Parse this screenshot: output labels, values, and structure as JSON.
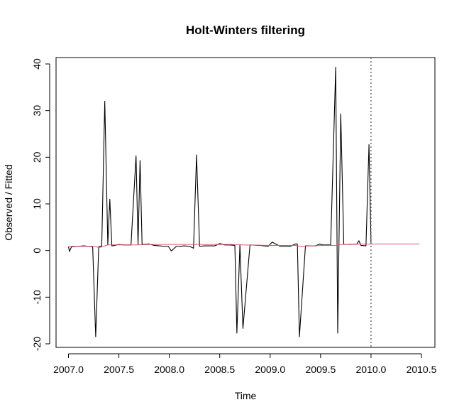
{
  "chart_data": {
    "type": "line",
    "title": "Holt-Winters filtering",
    "xlabel": "Time",
    "ylabel": "Observed / Fitted",
    "xlim": [
      2007.0,
      2010.5
    ],
    "ylim": [
      -20,
      40
    ],
    "xticks": [
      "2007.0",
      "2007.5",
      "2008.0",
      "2008.5",
      "2009.0",
      "2009.5",
      "2010.0",
      "2010.5"
    ],
    "yticks": [
      "-20",
      "-10",
      "0",
      "10",
      "20",
      "30",
      "40"
    ],
    "grid": false,
    "legend": "none",
    "reference_lines": [
      {
        "x": 2010.0,
        "style": "dotted",
        "color": "#555555"
      }
    ],
    "series": [
      {
        "color": "#000000",
        "x": [
          2007.0,
          2007.01,
          2007.03,
          2007.1,
          2007.15,
          2007.2,
          2007.24,
          2007.27,
          2007.3,
          2007.33,
          2007.36,
          2007.39,
          2007.41,
          2007.43,
          2007.46,
          2007.5,
          2007.55,
          2007.62,
          2007.67,
          2007.69,
          2007.71,
          2007.73,
          2007.8,
          2007.85,
          2007.9,
          2007.95,
          2007.99,
          2008.02,
          2008.07,
          2008.1,
          2008.15,
          2008.2,
          2008.24,
          2008.27,
          2008.3,
          2008.35,
          2008.4,
          2008.45,
          2008.5,
          2008.55,
          2008.6,
          2008.65,
          2008.67,
          2008.7,
          2008.73,
          2008.8,
          2008.9,
          2008.98,
          2009.02,
          2009.1,
          2009.2,
          2009.25,
          2009.27,
          2009.29,
          2009.35,
          2009.4,
          2009.45,
          2009.49,
          2009.52,
          2009.6,
          2009.65,
          2009.67,
          2009.7,
          2009.73,
          2009.8,
          2009.86,
          2009.88,
          2009.9,
          2009.95,
          2009.98,
          2010.0
        ],
        "y": [
          0.8,
          -0.2,
          0.8,
          0.9,
          1.0,
          0.9,
          0.8,
          -18.5,
          0.8,
          1.0,
          32.0,
          1.2,
          11.0,
          1.0,
          1.1,
          1.3,
          1.2,
          1.2,
          20.3,
          1.3,
          19.3,
          1.3,
          1.4,
          1.1,
          1.0,
          0.9,
          0.9,
          -0.1,
          0.9,
          0.9,
          1.0,
          0.9,
          0.5,
          20.5,
          0.9,
          1.0,
          1.0,
          1.0,
          1.5,
          1.2,
          1.2,
          1.1,
          -17.7,
          1.2,
          -16.7,
          1.2,
          1.1,
          0.9,
          1.8,
          0.9,
          0.9,
          1.4,
          1.4,
          -18.5,
          1.0,
          1.0,
          1.0,
          1.4,
          1.2,
          1.2,
          39.3,
          -17.7,
          29.3,
          1.3,
          1.3,
          1.4,
          2.1,
          1.1,
          1.0,
          22.7,
          1.4
        ]
      },
      {
        "color": "#df536b",
        "x": [
          2007.0,
          2007.27,
          2007.3,
          2007.36,
          2007.39,
          2007.5,
          2007.67,
          2007.8,
          2008.0,
          2008.27,
          2008.5,
          2008.67,
          2008.73,
          2009.0,
          2009.25,
          2009.29,
          2009.5,
          2009.65,
          2009.7,
          2010.0,
          2010.48
        ],
        "y": [
          0.9,
          0.9,
          0.6,
          1.0,
          1.2,
          1.2,
          1.2,
          1.3,
          1.3,
          1.3,
          1.3,
          1.3,
          1.2,
          1.1,
          1.1,
          0.9,
          1.1,
          1.1,
          1.3,
          1.4,
          1.4
        ]
      }
    ]
  }
}
